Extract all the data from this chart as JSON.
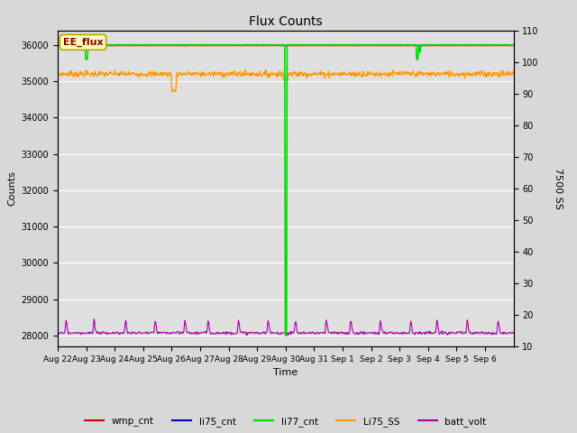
{
  "title": "Flux Counts",
  "xlabel": "Time",
  "ylabel_left": "Counts",
  "ylabel_right": "7500 SS",
  "annotation_text": "EE_flux",
  "ylim_left": [
    27700,
    36400
  ],
  "ylim_right": [
    10,
    110
  ],
  "yticks_left": [
    28000,
    29000,
    30000,
    31000,
    32000,
    33000,
    34000,
    35000,
    36000
  ],
  "yticks_right": [
    10,
    20,
    30,
    40,
    50,
    60,
    70,
    80,
    90,
    100,
    110
  ],
  "background_color": "#d8d8d8",
  "plot_bg_color": "#e0e0e0",
  "colors": {
    "wmp_cnt": "#cc0000",
    "li75_cnt": "#0000cc",
    "li77_cnt": "#00dd00",
    "Li75_SS": "#ff9900",
    "batt_volt": "#aa00aa"
  },
  "x_tick_labels": [
    "Aug 22",
    "Aug 23",
    "Aug 24",
    "Aug 25",
    "Aug 26",
    "Aug 27",
    "Aug 28",
    "Aug 29",
    "Aug 30",
    "Aug 31",
    "Sep 1",
    "Sep 2",
    "Sep 3",
    "Sep 4",
    "Sep 5",
    "Sep 6"
  ]
}
